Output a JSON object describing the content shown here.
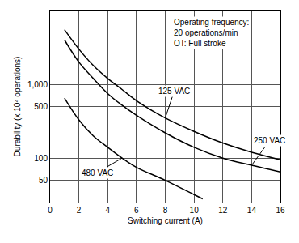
{
  "chart_data": {
    "type": "line",
    "x_label": "Switching current (A)",
    "y_label": "Durability (x 10⁴ operations)",
    "note": [
      "Operating frequency:",
      "20 operations/min",
      "OT: Full stroke"
    ],
    "log": "y",
    "grid": true,
    "xlim": [
      0,
      16
    ],
    "xticks": [
      0,
      2,
      4,
      6,
      8,
      10,
      12,
      14,
      16
    ],
    "ylim": [
      25,
      10000
    ],
    "yticks": [
      50,
      100,
      500,
      {
        "value": 1000,
        "label": "1,000"
      }
    ],
    "series": [
      {
        "name": "125 VAC",
        "color": "#000000",
        "x": [
          1,
          2,
          3,
          4,
          5,
          6,
          8,
          10,
          12,
          14,
          16
        ],
        "values": [
          5500,
          3000,
          1800,
          1200,
          850,
          600,
          350,
          230,
          160,
          120,
          95
        ]
      },
      {
        "name": "250 VAC",
        "color": "#000000",
        "x": [
          1,
          2,
          3,
          4,
          5,
          6,
          8,
          10,
          12,
          14,
          16
        ],
        "values": [
          4000,
          2000,
          1200,
          750,
          520,
          380,
          220,
          140,
          100,
          80,
          65
        ]
      },
      {
        "name": "480 VAC",
        "color": "#000000",
        "x": [
          1,
          2,
          3,
          4,
          5,
          6,
          8,
          10,
          10.6
        ],
        "values": [
          650,
          330,
          200,
          140,
          100,
          75,
          50,
          32,
          28
        ]
      }
    ]
  }
}
